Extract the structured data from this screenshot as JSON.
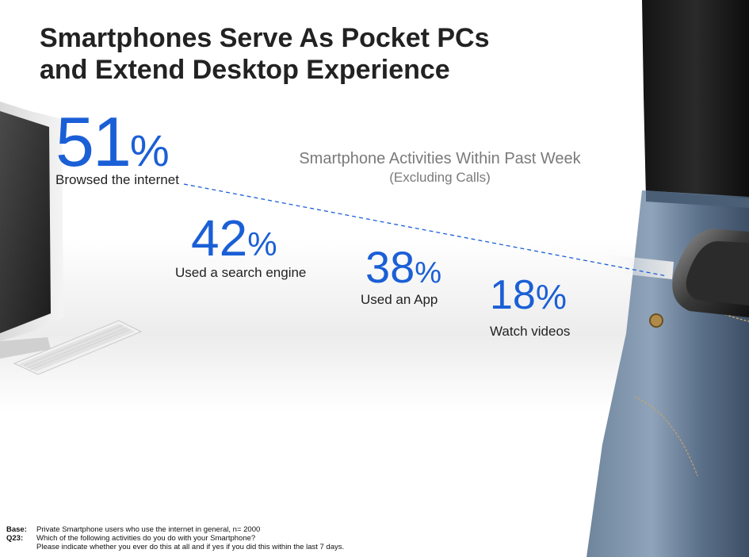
{
  "title": {
    "line1": "Smartphones Serve As Pocket PCs",
    "line2": "and Extend Desktop Experience"
  },
  "subtitle": {
    "line1": "Smartphone Activities Within Past Week",
    "line2": "(Excluding Calls)"
  },
  "stats": [
    {
      "value": "51",
      "unit": "%",
      "label": "Browsed the internet"
    },
    {
      "value": "42",
      "unit": "%",
      "label": "Used a search engine"
    },
    {
      "value": "38",
      "unit": "%",
      "label": "Used an App"
    },
    {
      "value": "18",
      "unit": "%",
      "label": "Watch videos"
    }
  ],
  "footer": {
    "base_key": "Base:",
    "base_text": "Private Smartphone users who use the internet in general, n= 2000",
    "q_key": "Q23:",
    "q_text1": "Which of the following activities do you do with your Smartphone?",
    "q_text2": "Please indicate whether you ever do this at all and if yes if you did this within the last 7 days."
  },
  "colors": {
    "accent_blue": "#1a5fd6",
    "title_text": "#222222",
    "subtitle_text": "#7a7a7a"
  },
  "icons": [
    "desktop-monitor-illustration",
    "keyboard-illustration",
    "jeans-with-smartphone-photo"
  ]
}
